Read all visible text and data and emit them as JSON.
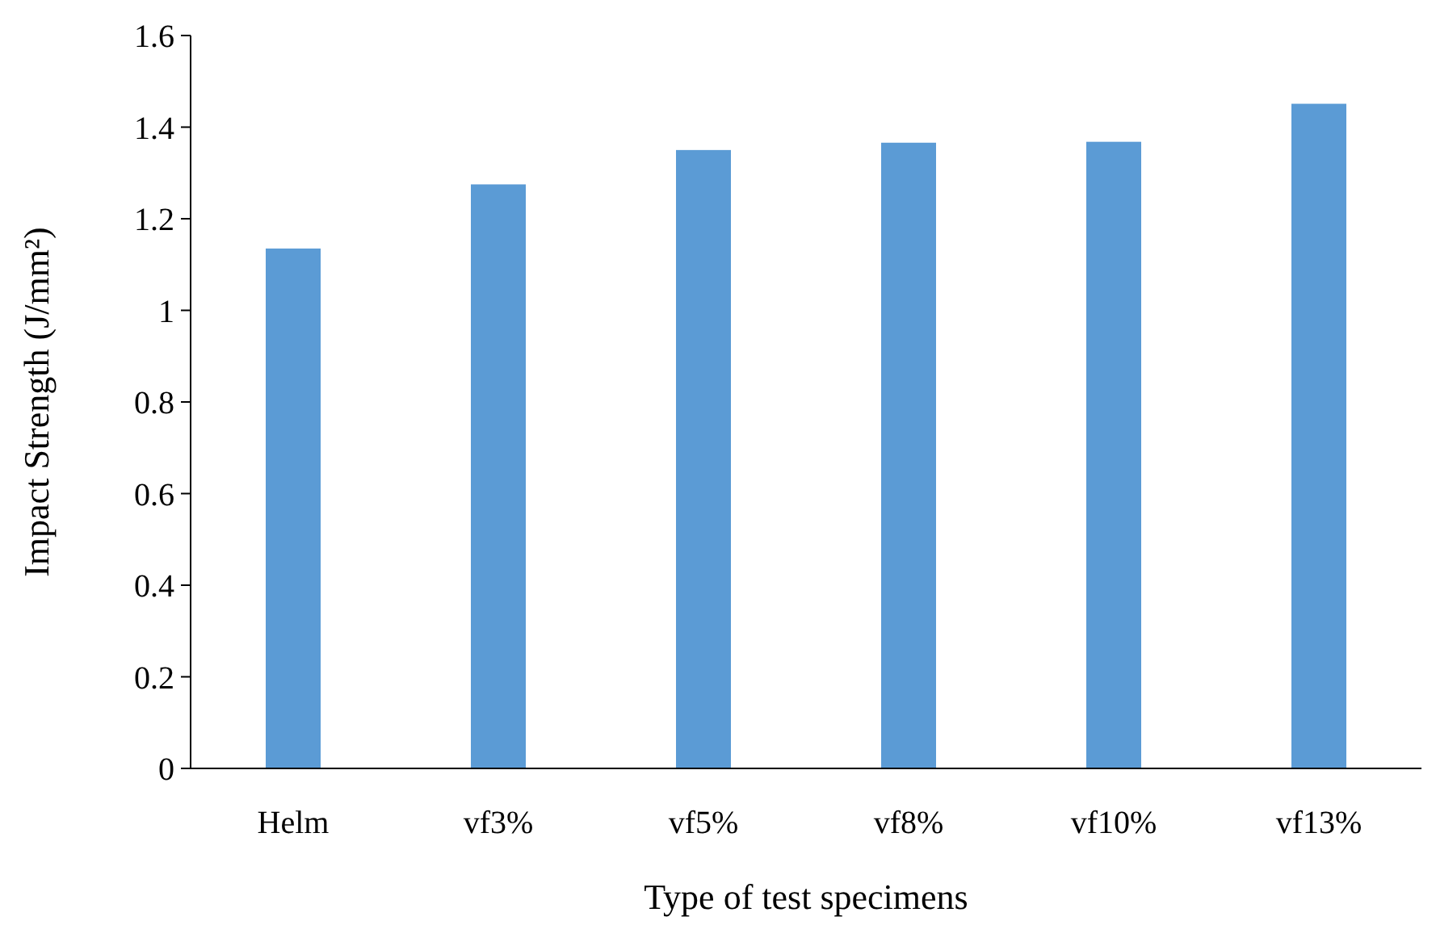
{
  "chart_data": {
    "type": "bar",
    "xlabel": "Type of test specimens",
    "ylabel": "Impact Strength (J/mm²)",
    "categories": [
      "Helm",
      "vf3%",
      "vf5%",
      "vf8%",
      "vf10%",
      "vf13%"
    ],
    "values": [
      1.135,
      1.275,
      1.35,
      1.366,
      1.368,
      1.451
    ],
    "color": "#5b9bd5",
    "ylim": [
      0,
      1.6
    ],
    "yticks": [
      0,
      0.2,
      0.4,
      0.6,
      0.8,
      1,
      1.2,
      1.4,
      1.6
    ],
    "grid": false
  }
}
